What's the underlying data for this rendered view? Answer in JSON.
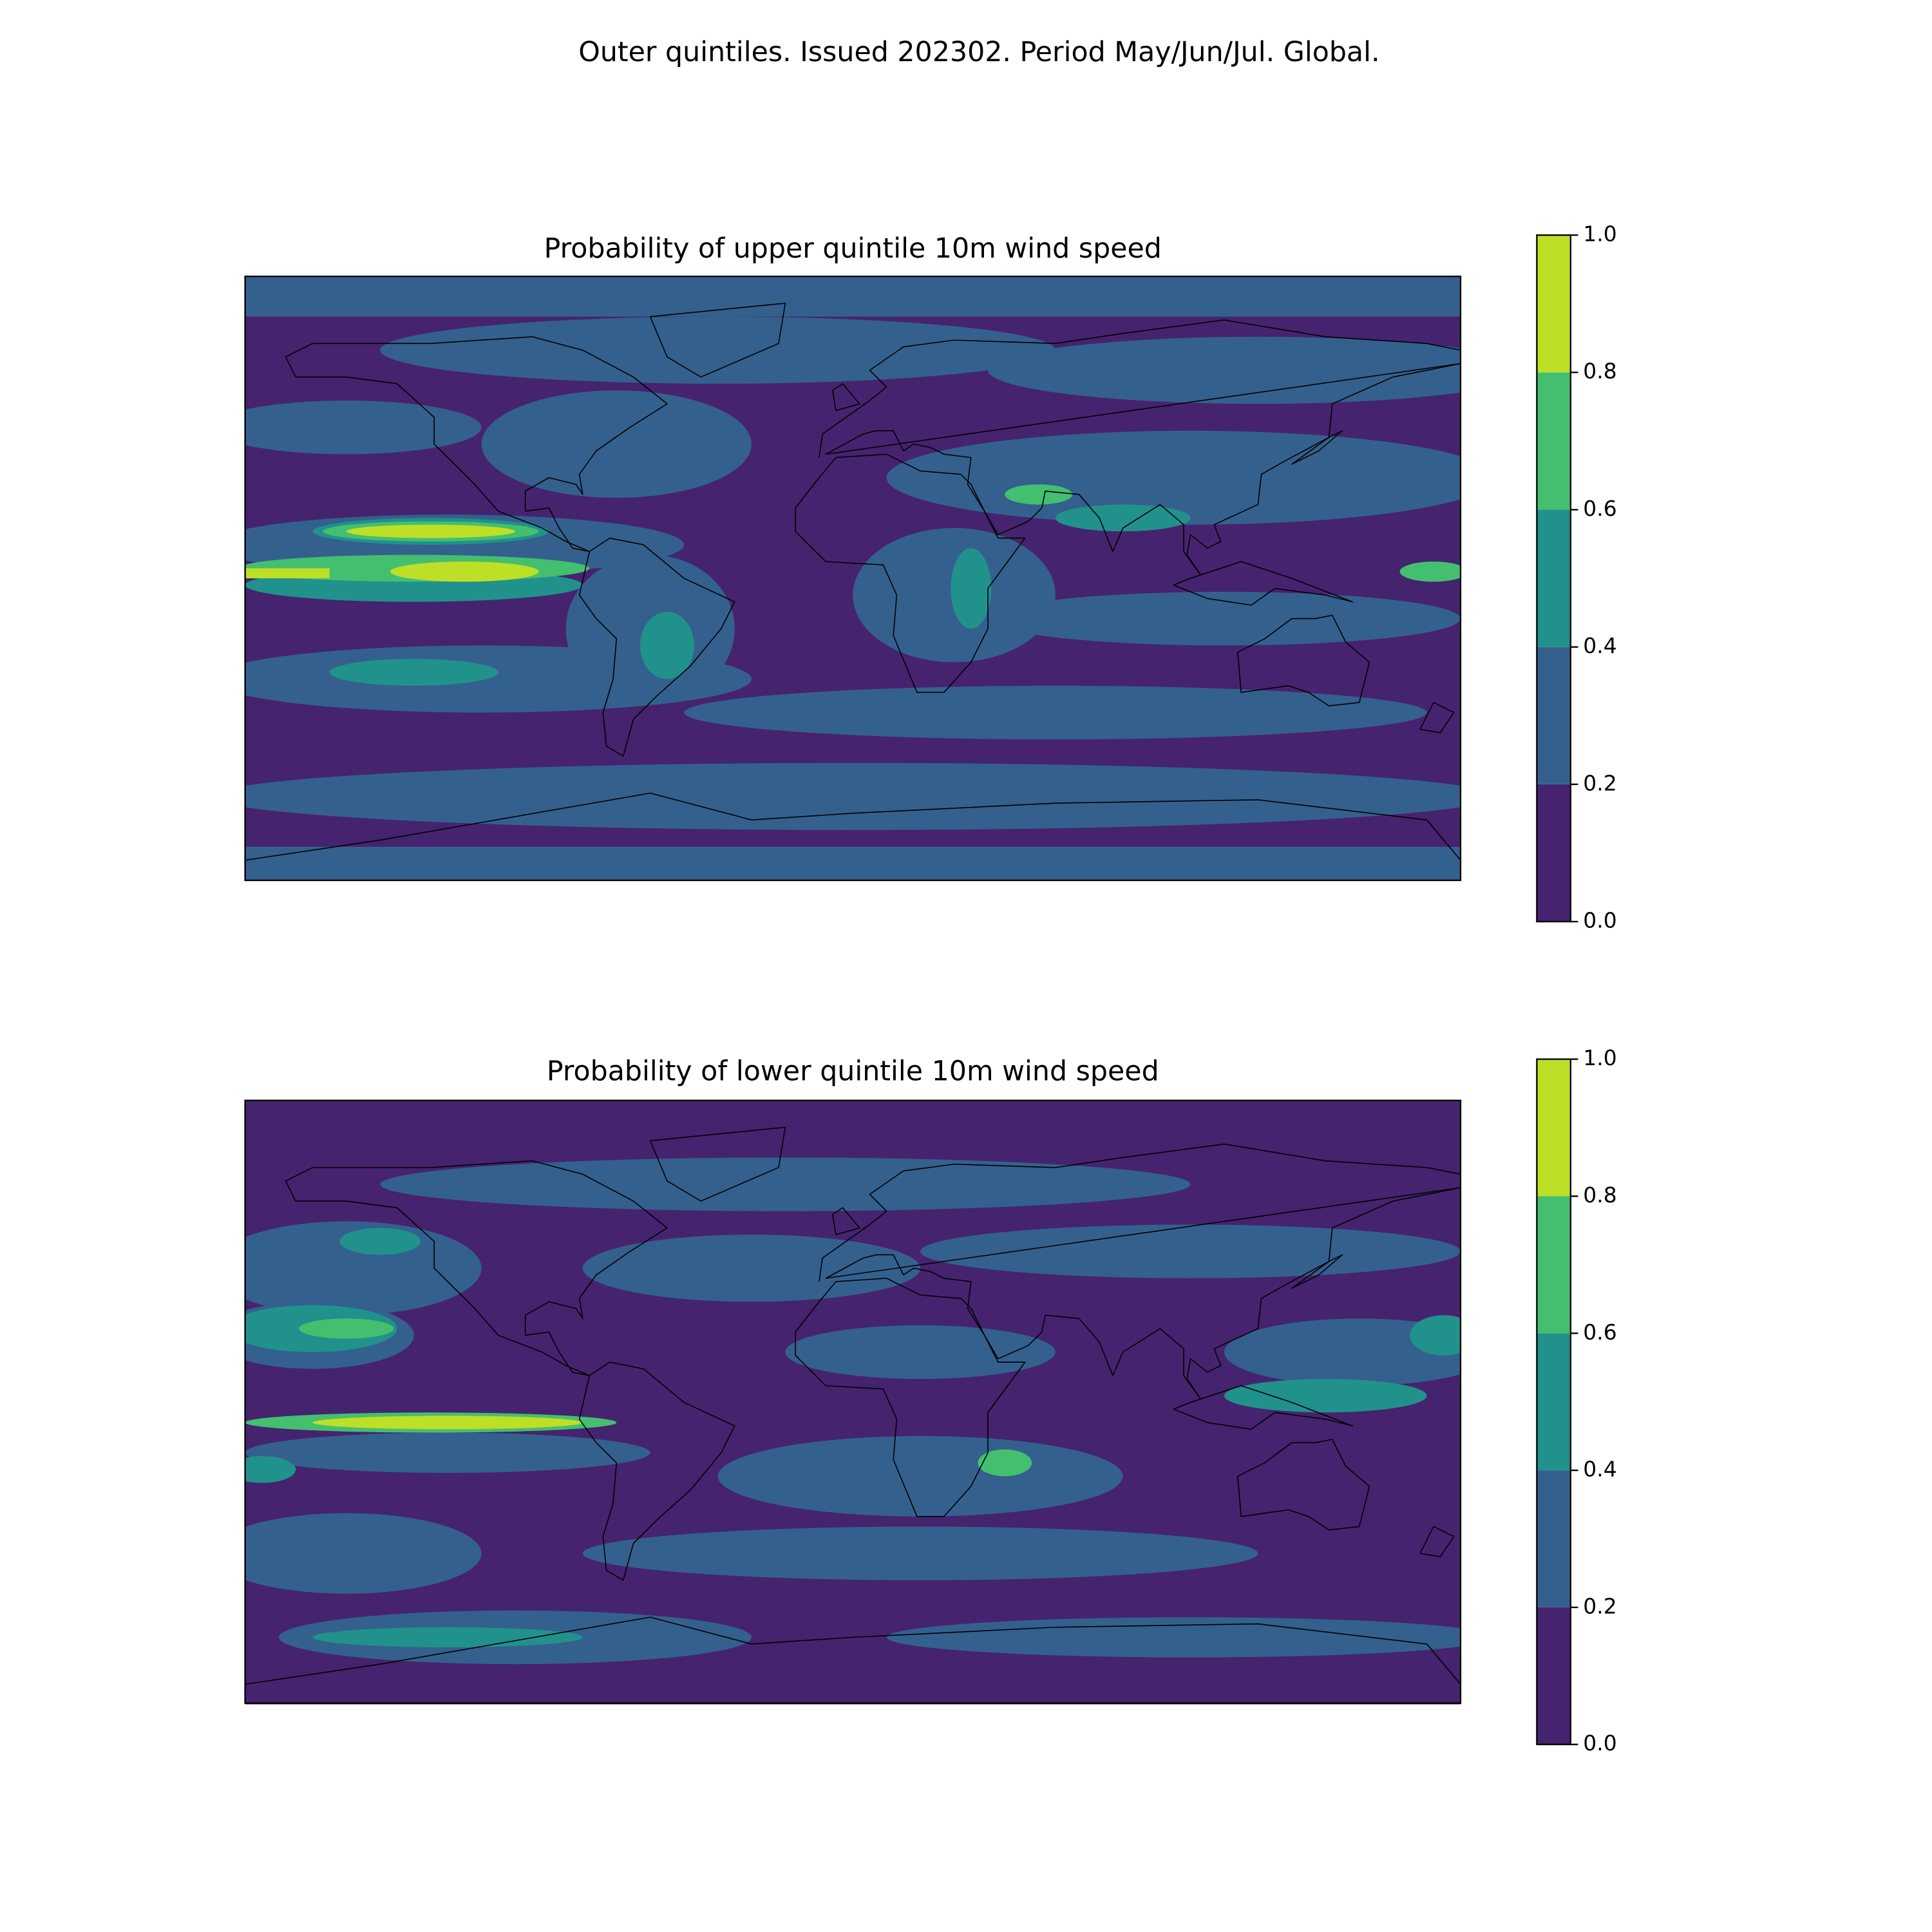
{
  "title": "Outer quintiles. Issued 202302. Period May/Jun/Jul. Global.",
  "maps": [
    {
      "title": "Probability of upper quintile 10m wind speed",
      "colorbar": {
        "lim": [
          0,
          1
        ],
        "ticks": [
          {
            "value": 0,
            "label": "0.0"
          },
          {
            "value": 0.2,
            "label": "0.2"
          },
          {
            "value": 0.4,
            "label": "0.4"
          },
          {
            "value": 0.6,
            "label": "0.6"
          },
          {
            "value": 0.8,
            "label": "0.8"
          },
          {
            "value": 1,
            "label": "1.0"
          }
        ],
        "colors": [
          "#45236f",
          "#34608d",
          "#21918c",
          "#44bf70",
          "#bddf26"
        ]
      }
    },
    {
      "title": "Probability of lower quintile 10m wind speed",
      "colorbar": {
        "lim": [
          0,
          1
        ],
        "ticks": [
          {
            "value": 0,
            "label": "0.0"
          },
          {
            "value": 0.2,
            "label": "0.2"
          },
          {
            "value": 0.4,
            "label": "0.4"
          },
          {
            "value": 0.6,
            "label": "0.6"
          },
          {
            "value": 0.8,
            "label": "0.8"
          },
          {
            "value": 1,
            "label": "1.0"
          }
        ],
        "colors": [
          "#45236f",
          "#34608d",
          "#21918c",
          "#44bf70",
          "#bddf26"
        ]
      }
    }
  ]
}
